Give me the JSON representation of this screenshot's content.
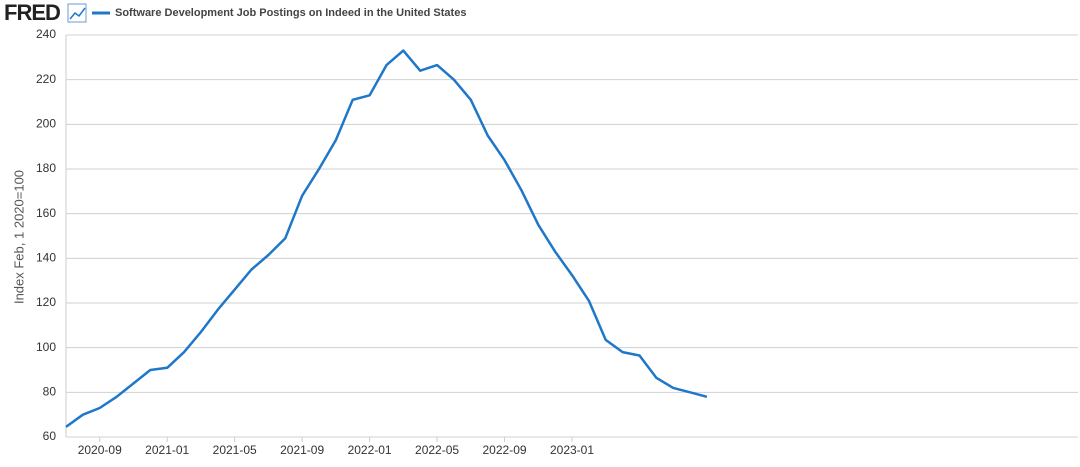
{
  "brand": "FRED",
  "chart_data": {
    "type": "line",
    "y_label": "Index Feb, 1 2020=100",
    "x": [
      "2020-07",
      "2020-08",
      "2020-09",
      "2020-10",
      "2020-11",
      "2020-12",
      "2021-01",
      "2021-02",
      "2021-03",
      "2021-04",
      "2021-05",
      "2021-06",
      "2021-07",
      "2021-08",
      "2021-09",
      "2021-10",
      "2021-11",
      "2021-12",
      "2022-01",
      "2022-02",
      "2022-03",
      "2022-04",
      "2022-05",
      "2022-06",
      "2022-07",
      "2022-08",
      "2022-09",
      "2022-10",
      "2022-11",
      "2022-12",
      "2023-01",
      "2023-02",
      "2023-03",
      "2023-04",
      "2023-05",
      "2023-06",
      "2023-07",
      "2023-08",
      "2023-09"
    ],
    "series": [
      {
        "name": "Software Development Job Postings on Indeed in the United States",
        "color": "#1f77c9",
        "values": [
          64.5,
          70,
          73,
          78,
          84,
          90,
          91,
          98,
          107,
          117,
          126,
          135,
          141.5,
          149,
          168,
          180,
          193,
          211,
          213,
          226.5,
          233,
          224,
          226.5,
          220,
          211,
          195,
          184,
          170.5,
          155,
          143,
          132.5,
          121,
          103.5,
          98,
          96.5,
          86.5,
          82,
          80,
          78
        ]
      }
    ],
    "xlim": [
      "2020-07",
      "2025-07"
    ],
    "xticks": [
      "2020-09",
      "2021-01",
      "2021-05",
      "2021-09",
      "2022-01",
      "2022-05",
      "2022-09",
      "2023-01"
    ],
    "ylim": [
      60,
      240
    ],
    "yticks": [
      60,
      80,
      100,
      120,
      140,
      160,
      180,
      200,
      220,
      240
    ],
    "grid": true
  }
}
